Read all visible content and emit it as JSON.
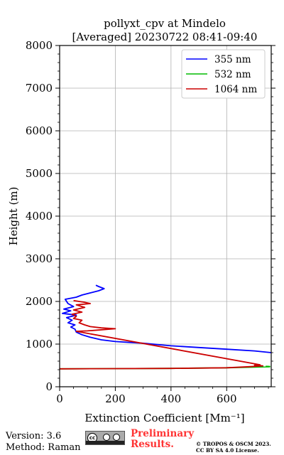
{
  "chart_data": {
    "type": "line",
    "title_line1": "pollyxt_cpv at Mindelo",
    "title_line2": "[Averaged] 20230722 08:41-09:40",
    "xlabel": "Extinction Coefficient [Mm⁻¹]",
    "ylabel": "Height (m)",
    "xlim": [
      0,
      760
    ],
    "ylim": [
      0,
      8000
    ],
    "xticks": [
      0,
      200,
      400,
      600
    ],
    "yticks": [
      0,
      1000,
      2000,
      3000,
      4000,
      5000,
      6000,
      7000,
      8000
    ],
    "grid": true,
    "legend_position": "top-right",
    "series": [
      {
        "name": "355 nm",
        "color": "#0000ff",
        "points": [
          [
            760,
            800
          ],
          [
            700,
            840
          ],
          [
            600,
            880
          ],
          [
            500,
            920
          ],
          [
            400,
            960
          ],
          [
            300,
            1020
          ],
          [
            200,
            1060
          ],
          [
            150,
            1100
          ],
          [
            110,
            1160
          ],
          [
            80,
            1220
          ],
          [
            60,
            1280
          ],
          [
            55,
            1350
          ],
          [
            40,
            1400
          ],
          [
            55,
            1450
          ],
          [
            30,
            1500
          ],
          [
            45,
            1560
          ],
          [
            25,
            1620
          ],
          [
            60,
            1680
          ],
          [
            10,
            1720
          ],
          [
            40,
            1780
          ],
          [
            15,
            1820
          ],
          [
            50,
            1880
          ],
          [
            30,
            1950
          ],
          [
            20,
            2050
          ],
          [
            60,
            2100
          ],
          [
            80,
            2150
          ],
          [
            110,
            2200
          ],
          [
            140,
            2250
          ],
          [
            160,
            2300
          ],
          [
            140,
            2350
          ],
          [
            130,
            2380
          ]
        ]
      },
      {
        "name": "532 nm",
        "color": "#00bb00",
        "points": [
          [
            0,
            420
          ],
          [
            200,
            425
          ],
          [
            400,
            430
          ],
          [
            600,
            445
          ],
          [
            700,
            460
          ],
          [
            755,
            470
          ],
          [
            755,
            475
          ],
          [
            740,
            478
          ]
        ]
      },
      {
        "name": "1064 nm",
        "color": "#cc0000",
        "points": [
          [
            0,
            420
          ],
          [
            200,
            425
          ],
          [
            400,
            430
          ],
          [
            600,
            445
          ],
          [
            680,
            470
          ],
          [
            730,
            490
          ],
          [
            700,
            505
          ],
          [
            720,
            515
          ],
          [
            60,
            1300
          ],
          [
            100,
            1310
          ],
          [
            140,
            1330
          ],
          [
            200,
            1360
          ],
          [
            150,
            1380
          ],
          [
            110,
            1410
          ],
          [
            90,
            1450
          ],
          [
            70,
            1500
          ],
          [
            80,
            1560
          ],
          [
            50,
            1600
          ],
          [
            60,
            1650
          ],
          [
            45,
            1700
          ],
          [
            80,
            1750
          ],
          [
            50,
            1800
          ],
          [
            90,
            1860
          ],
          [
            60,
            1920
          ],
          [
            110,
            1950
          ],
          [
            90,
            1980
          ],
          [
            70,
            2000
          ],
          [
            50,
            2020
          ]
        ]
      }
    ]
  },
  "footer": {
    "version": "Version: 3.6",
    "method": "Method: Raman",
    "preliminary_line1": "Preliminary",
    "preliminary_line2": "Results.",
    "copyright_line1": "© TROPOS & OSCM 2023.",
    "copyright_line2": "CC BY SA 4.0 License.",
    "license_badge": "cc"
  }
}
